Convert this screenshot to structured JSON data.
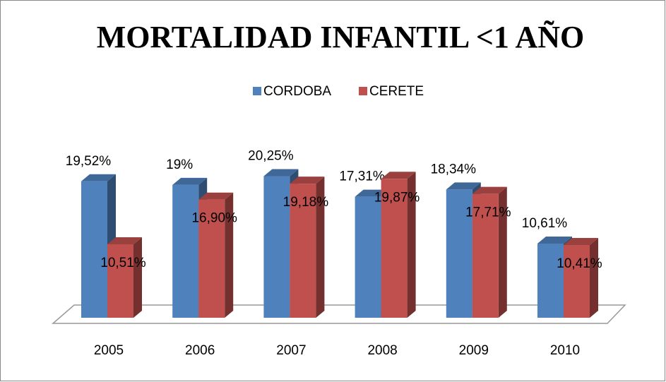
{
  "chart_data": {
    "type": "bar3d",
    "title": "MORTALIDAD INFANTIL <1 AÑO",
    "categories": [
      "2005",
      "2006",
      "2007",
      "2008",
      "2009",
      "2010"
    ],
    "series": [
      {
        "name": "CORDOBA",
        "color": "#4f81bd",
        "values": [
          19.52,
          19,
          20.25,
          17.31,
          18.34,
          10.61
        ],
        "value_labels": [
          "19,52%",
          "19%",
          "20,25%",
          "17,31%",
          "18,34%",
          "10,61%"
        ]
      },
      {
        "name": "CERETE",
        "color": "#c0504d",
        "values": [
          10.51,
          16.9,
          19.18,
          19.87,
          17.71,
          10.41
        ],
        "value_labels": [
          "10,51%",
          "16,90%",
          "19,18%",
          "19,87%",
          "17,71%",
          "10,41%"
        ]
      }
    ]
  }
}
